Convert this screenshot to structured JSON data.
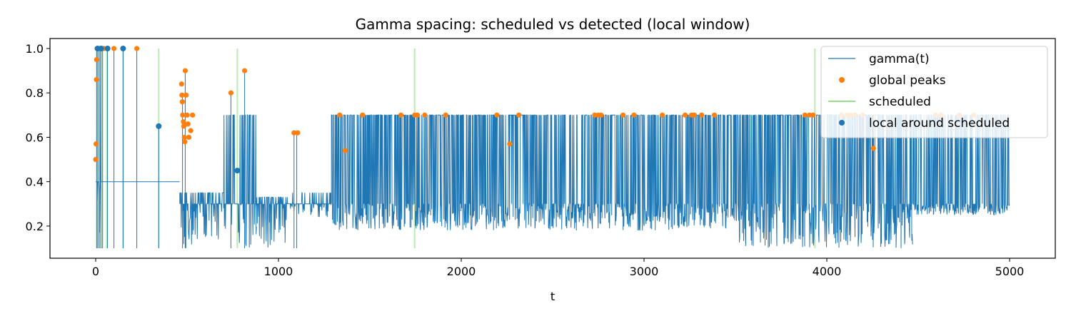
{
  "chart_data": {
    "type": "line",
    "title": "Gamma spacing: scheduled vs detected (local window)",
    "xlabel": "t",
    "ylabel": "",
    "xlim": [
      -250,
      5250
    ],
    "ylim": [
      0.055,
      1.045
    ],
    "xticks": [
      0,
      1000,
      2000,
      3000,
      4000,
      5000
    ],
    "yticks": [
      0.2,
      0.4,
      0.6,
      0.8,
      1.0
    ],
    "xtick_labels": [
      "0",
      "1000",
      "2000",
      "3000",
      "4000",
      "5000"
    ],
    "ytick_labels": [
      "0.2",
      "0.4",
      "0.6",
      "0.8",
      "1.0"
    ],
    "legend_position": "top-right",
    "grid": false,
    "colors": {
      "gamma": "#1f77b4",
      "global_peaks": "#ff7f0e",
      "scheduled": "#98df8a",
      "local": "#1f77b4"
    },
    "series": [
      {
        "name": "gamma(t)",
        "kind": "line",
        "segments": [
          {
            "start": 0,
            "end": 40,
            "low": 0.1,
            "high": 1.0,
            "base": 0.4,
            "density": 0.25
          },
          {
            "start": 40,
            "end": 460,
            "low": 0.4,
            "high": 0.4,
            "base": 0.4,
            "density": 0.0
          },
          {
            "start": 460,
            "end": 700,
            "low": 0.1,
            "high": 0.35,
            "base": 0.3,
            "density": 0.6
          },
          {
            "start": 700,
            "end": 880,
            "low": 0.1,
            "high": 0.7,
            "base": 0.3,
            "density": 0.5
          },
          {
            "start": 880,
            "end": 1050,
            "low": 0.1,
            "high": 0.33,
            "base": 0.3,
            "density": 0.7
          },
          {
            "start": 1050,
            "end": 1290,
            "low": 0.24,
            "high": 0.35,
            "base": 0.3,
            "density": 0.3
          },
          {
            "start": 1290,
            "end": 3500,
            "low": 0.18,
            "high": 0.7,
            "base": 0.3,
            "density": 0.9
          },
          {
            "start": 3500,
            "end": 4470,
            "low": 0.1,
            "high": 0.7,
            "base": 0.3,
            "density": 0.9
          },
          {
            "start": 4470,
            "end": 5000,
            "low": 0.25,
            "high": 0.7,
            "base": 0.3,
            "density": 0.9
          }
        ],
        "spikes": [
          {
            "x": 5,
            "y": 1.0
          },
          {
            "x": 12,
            "y": 1.0
          },
          {
            "x": 20,
            "y": 1.0
          },
          {
            "x": 28,
            "y": 1.0
          },
          {
            "x": 38,
            "y": 1.0
          },
          {
            "x": 65,
            "y": 1.0
          },
          {
            "x": 100,
            "y": 1.0
          },
          {
            "x": 150,
            "y": 1.0
          },
          {
            "x": 225,
            "y": 1.0
          },
          {
            "x": 345,
            "y": 0.65
          },
          {
            "x": 475,
            "y": 0.8
          },
          {
            "x": 490,
            "y": 0.9
          },
          {
            "x": 740,
            "y": 0.8
          },
          {
            "x": 815,
            "y": 0.9
          },
          {
            "x": 1085,
            "y": 0.62
          },
          {
            "x": 1100,
            "y": 0.62
          }
        ]
      },
      {
        "name": "global peaks",
        "kind": "scatter",
        "points": [
          {
            "x": 0,
            "y": 0.5
          },
          {
            "x": 2,
            "y": 0.57
          },
          {
            "x": 4,
            "y": 0.86
          },
          {
            "x": 5,
            "y": 0.95
          },
          {
            "x": 8,
            "y": 1.0
          },
          {
            "x": 15,
            "y": 1.0
          },
          {
            "x": 25,
            "y": 1.0
          },
          {
            "x": 45,
            "y": 1.0
          },
          {
            "x": 65,
            "y": 1.0
          },
          {
            "x": 100,
            "y": 1.0
          },
          {
            "x": 150,
            "y": 1.0
          },
          {
            "x": 225,
            "y": 1.0
          },
          {
            "x": 470,
            "y": 0.84
          },
          {
            "x": 472,
            "y": 0.79
          },
          {
            "x": 474,
            "y": 0.76
          },
          {
            "x": 476,
            "y": 0.7
          },
          {
            "x": 480,
            "y": 0.67
          },
          {
            "x": 482,
            "y": 0.65
          },
          {
            "x": 485,
            "y": 0.6
          },
          {
            "x": 488,
            "y": 0.58
          },
          {
            "x": 490,
            "y": 0.9
          },
          {
            "x": 495,
            "y": 0.79
          },
          {
            "x": 500,
            "y": 0.7
          },
          {
            "x": 505,
            "y": 0.66
          },
          {
            "x": 510,
            "y": 0.6
          },
          {
            "x": 520,
            "y": 0.63
          },
          {
            "x": 530,
            "y": 0.7
          },
          {
            "x": 740,
            "y": 0.8
          },
          {
            "x": 815,
            "y": 0.9
          },
          {
            "x": 1085,
            "y": 0.62
          },
          {
            "x": 1105,
            "y": 0.62
          },
          {
            "x": 1335,
            "y": 0.7
          },
          {
            "x": 1365,
            "y": 0.54
          },
          {
            "x": 1460,
            "y": 0.7
          },
          {
            "x": 1670,
            "y": 0.7
          },
          {
            "x": 1745,
            "y": 0.7
          },
          {
            "x": 1760,
            "y": 0.7
          },
          {
            "x": 1800,
            "y": 0.7
          },
          {
            "x": 1915,
            "y": 0.7
          },
          {
            "x": 2195,
            "y": 0.7
          },
          {
            "x": 2265,
            "y": 0.57
          },
          {
            "x": 2315,
            "y": 0.7
          },
          {
            "x": 2730,
            "y": 0.7
          },
          {
            "x": 2750,
            "y": 0.7
          },
          {
            "x": 2765,
            "y": 0.7
          },
          {
            "x": 2885,
            "y": 0.7
          },
          {
            "x": 2945,
            "y": 0.7
          },
          {
            "x": 3100,
            "y": 0.7
          },
          {
            "x": 3225,
            "y": 0.7
          },
          {
            "x": 3260,
            "y": 0.7
          },
          {
            "x": 3275,
            "y": 0.7
          },
          {
            "x": 3315,
            "y": 0.7
          },
          {
            "x": 3385,
            "y": 0.7
          },
          {
            "x": 3880,
            "y": 0.7
          },
          {
            "x": 3905,
            "y": 0.7
          },
          {
            "x": 3925,
            "y": 0.7
          },
          {
            "x": 4080,
            "y": 0.7
          },
          {
            "x": 4110,
            "y": 0.7
          },
          {
            "x": 4130,
            "y": 0.7
          },
          {
            "x": 4155,
            "y": 0.7
          },
          {
            "x": 4195,
            "y": 0.7
          },
          {
            "x": 4255,
            "y": 0.55
          },
          {
            "x": 4595,
            "y": 0.7
          },
          {
            "x": 4625,
            "y": 0.7
          },
          {
            "x": 4725,
            "y": 0.7
          },
          {
            "x": 4805,
            "y": 0.7
          }
        ]
      },
      {
        "name": "scheduled",
        "kind": "vlines",
        "x": [
          10,
          30,
          60,
          150,
          345,
          775,
          1745,
          3935
        ],
        "ymin": 0.1,
        "ymax": 1.0
      },
      {
        "name": "local around scheduled",
        "kind": "scatter",
        "points": [
          {
            "x": 10,
            "y": 1.0
          },
          {
            "x": 30,
            "y": 1.0
          },
          {
            "x": 65,
            "y": 1.0
          },
          {
            "x": 150,
            "y": 1.0
          },
          {
            "x": 345,
            "y": 0.65
          },
          {
            "x": 775,
            "y": 0.45
          }
        ]
      }
    ]
  }
}
